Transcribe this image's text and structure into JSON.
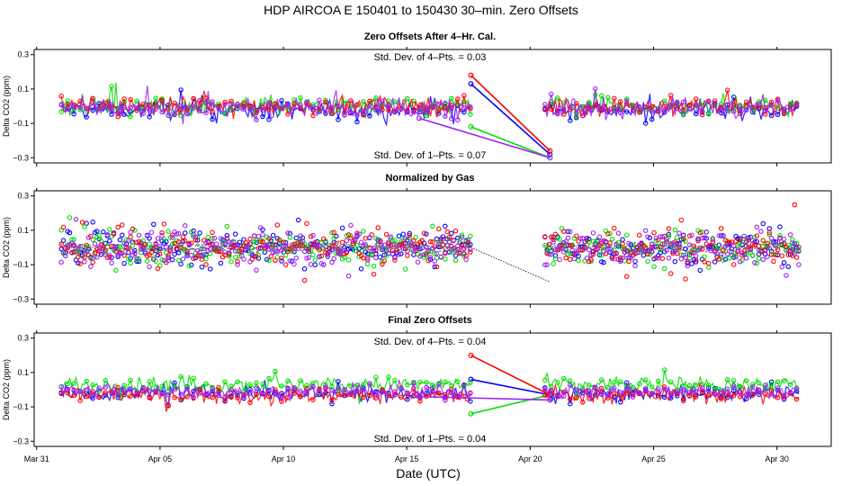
{
  "figure": {
    "title": "HDP    AIRCOA E    150401 to 150430    30–min. Zero Offsets",
    "xlabel": "Date (UTC)",
    "x_ticks": [
      "Mar 31",
      "Apr 05",
      "Apr 10",
      "Apr 15",
      "Apr 20",
      "Apr 25",
      "Apr 30"
    ],
    "x_tick_values": [
      0,
      5,
      10,
      15,
      20,
      25,
      30
    ],
    "x_range": [
      -0.1,
      32.2
    ],
    "colors": {
      "gas1": "#0000ff",
      "gas2": "#00dd00",
      "gas3": "#ff0000",
      "gas4": "#a020f0",
      "norm": "#000000"
    }
  },
  "chart_data": [
    {
      "type": "scatter",
      "title": "Zero Offsets After 4–Hr. Cal.",
      "ylabel": "Delta CO2 (ppm)",
      "ylim": [
        -0.33,
        0.33
      ],
      "yticks": [
        -0.3,
        -0.1,
        0.1,
        0.3
      ],
      "ytick_labels": [
        "−0.3",
        "−0.1",
        "0.1",
        "0.3"
      ],
      "annotation_top": "Std. Dev. of 4–Pts. =  0.03",
      "annotation_bottom": "Std. Dev. of 1–Pts. =  0.07",
      "x_segments": [
        [
          1.0,
          17.6
        ],
        [
          20.6,
          30.9
        ]
      ],
      "series": [
        {
          "name": "gas1",
          "color": "#0000ff",
          "base": -0.02,
          "spread": 0.05,
          "gap_line": [
            [
              17.6,
              0.13
            ],
            [
              20.8,
              -0.28
            ]
          ]
        },
        {
          "name": "gas2",
          "color": "#00dd00",
          "base": 0.0,
          "spread": 0.05,
          "gap_line": [
            [
              17.6,
              -0.12
            ],
            [
              20.8,
              -0.3
            ]
          ]
        },
        {
          "name": "gas3",
          "color": "#ff0000",
          "base": 0.0,
          "spread": 0.05,
          "gap_line": [
            [
              17.6,
              0.18
            ],
            [
              20.8,
              -0.26
            ]
          ]
        },
        {
          "name": "gas4",
          "color": "#a020f0",
          "base": -0.01,
          "spread": 0.05,
          "gap_line": [
            [
              15.5,
              -0.07
            ],
            [
              20.8,
              -0.3
            ]
          ]
        }
      ]
    },
    {
      "type": "scatter",
      "title": "Normalized by Gas",
      "ylabel": "Delta CO2 (ppm)",
      "ylim": [
        -0.33,
        0.33
      ],
      "yticks": [
        -0.3,
        -0.1,
        0.1,
        0.3
      ],
      "ytick_labels": [
        "−0.3",
        "−0.1",
        "0.1",
        "0.3"
      ],
      "x_segments": [
        [
          1.0,
          17.6
        ],
        [
          20.6,
          30.9
        ]
      ],
      "series": [
        {
          "name": "gas1",
          "color": "#0000ff",
          "base": 0.0,
          "spread": 0.09
        },
        {
          "name": "gas2",
          "color": "#00dd00",
          "base": 0.0,
          "spread": 0.09
        },
        {
          "name": "gas3",
          "color": "#ff0000",
          "base": 0.0,
          "spread": 0.09
        },
        {
          "name": "gas4",
          "color": "#a020f0",
          "base": 0.0,
          "spread": 0.09
        }
      ],
      "normalized_line": {
        "color": "#000000",
        "value": 0.0,
        "gap_line": [
          [
            17.6,
            0.0
          ],
          [
            20.8,
            -0.2
          ]
        ]
      }
    },
    {
      "type": "scatter",
      "title": "Final Zero Offsets",
      "ylabel": "Delta CO2 (ppm)",
      "ylim": [
        -0.33,
        0.33
      ],
      "yticks": [
        -0.3,
        -0.1,
        0.1,
        0.3
      ],
      "ytick_labels": [
        "−0.3",
        "−0.1",
        "0.1",
        "0.3"
      ],
      "annotation_top": "Std. Dev. of 4–Pts. =  0.04",
      "annotation_bottom": "Std. Dev. of 1–Pts. =  0.04",
      "x_segments": [
        [
          1.0,
          17.6
        ],
        [
          20.6,
          30.9
        ]
      ],
      "series": [
        {
          "name": "gas1",
          "color": "#0000ff",
          "base": -0.02,
          "spread": 0.04,
          "gap_line": [
            [
              17.6,
              0.06
            ],
            [
              20.8,
              -0.03
            ]
          ]
        },
        {
          "name": "gas2",
          "color": "#00dd00",
          "base": 0.03,
          "spread": 0.04,
          "gap_line": [
            [
              17.6,
              -0.14
            ],
            [
              20.8,
              -0.03
            ]
          ]
        },
        {
          "name": "gas3",
          "color": "#ff0000",
          "base": -0.03,
          "spread": 0.04,
          "gap_line": [
            [
              17.6,
              0.2
            ],
            [
              20.8,
              -0.03
            ]
          ]
        },
        {
          "name": "gas4",
          "color": "#a020f0",
          "base": -0.01,
          "spread": 0.035,
          "gap_line": [
            [
              15.5,
              -0.04
            ],
            [
              20.8,
              -0.06
            ]
          ]
        }
      ]
    }
  ]
}
